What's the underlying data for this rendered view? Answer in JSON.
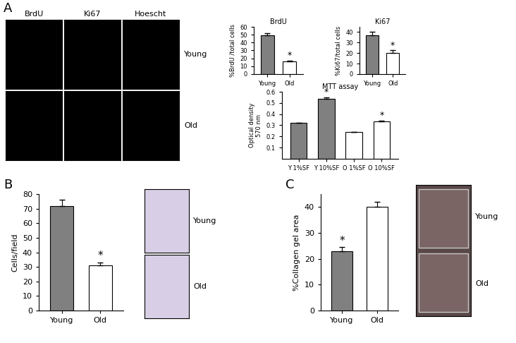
{
  "panel_letters": [
    "A",
    "B",
    "C"
  ],
  "microscopy": {
    "columns": [
      "BrdU",
      "Ki67",
      "Hoescht"
    ],
    "rows": [
      "Young",
      "Old"
    ]
  },
  "photo_labels_B": [
    "Young",
    "Old"
  ],
  "photo_labels_C": [
    "Young",
    "Old"
  ],
  "chart_data": [
    {
      "type": "bar",
      "title": "BrdU",
      "y_label": "%BrdU /total cells",
      "categories": [
        "Young",
        "Old"
      ],
      "values": [
        49,
        16
      ],
      "errors": [
        3,
        1
      ],
      "colors": [
        "#808080",
        "#ffffff"
      ],
      "ylim": [
        0,
        60
      ],
      "yticks": [
        0,
        10,
        20,
        30,
        40,
        50,
        60
      ],
      "annotations": [
        {
          "text": "*",
          "category": "Old"
        }
      ]
    },
    {
      "type": "bar",
      "title": "Ki67",
      "y_label": "%Ki67/total cells",
      "categories": [
        "Young",
        "Old"
      ],
      "values": [
        37,
        20
      ],
      "errors": [
        3,
        2.5
      ],
      "colors": [
        "#808080",
        "#ffffff"
      ],
      "ylim": [
        0,
        45
      ],
      "yticks": [
        0,
        10,
        20,
        30,
        40
      ],
      "annotations": [
        {
          "text": "*",
          "category": "Old"
        }
      ]
    },
    {
      "type": "bar",
      "title": "MTT assay",
      "y_label": "Optical density\n570 nm",
      "categories": [
        "Y 1%SF",
        "Y 10%SF",
        "O 1%SF",
        "O 10%SF"
      ],
      "values": [
        0.32,
        0.535,
        0.24,
        0.335
      ],
      "errors": [
        0.005,
        0.012,
        0,
        0.005
      ],
      "colors": [
        "#808080",
        "#808080",
        "#ffffff",
        "#ffffff"
      ],
      "ylim": [
        0,
        0.6
      ],
      "yticks": [
        0.1,
        0.2,
        0.3,
        0.4,
        0.5,
        0.6
      ],
      "annotations": [
        {
          "text": "*",
          "category": "Y 10%SF"
        },
        {
          "text": "*",
          "category": "O 10%SF"
        }
      ]
    },
    {
      "type": "bar",
      "y_label": "Cells/field",
      "categories": [
        "Young",
        "Old"
      ],
      "values": [
        72,
        31
      ],
      "errors": [
        4,
        2
      ],
      "colors": [
        "#808080",
        "#ffffff"
      ],
      "ylim": [
        0,
        80
      ],
      "yticks": [
        0,
        10,
        20,
        30,
        40,
        50,
        60,
        70,
        80
      ],
      "annotations": [
        {
          "text": "*",
          "category": "Old"
        }
      ]
    },
    {
      "type": "bar",
      "y_label": "%Collagen gel area",
      "categories": [
        "Young",
        "Old"
      ],
      "values": [
        23,
        40
      ],
      "errors": [
        1.5,
        2
      ],
      "colors": [
        "#808080",
        "#ffffff"
      ],
      "ylim": [
        0,
        45
      ],
      "yticks": [
        0,
        10,
        20,
        30,
        40
      ],
      "annotations": [
        {
          "text": "*",
          "category": "Young"
        }
      ]
    }
  ]
}
